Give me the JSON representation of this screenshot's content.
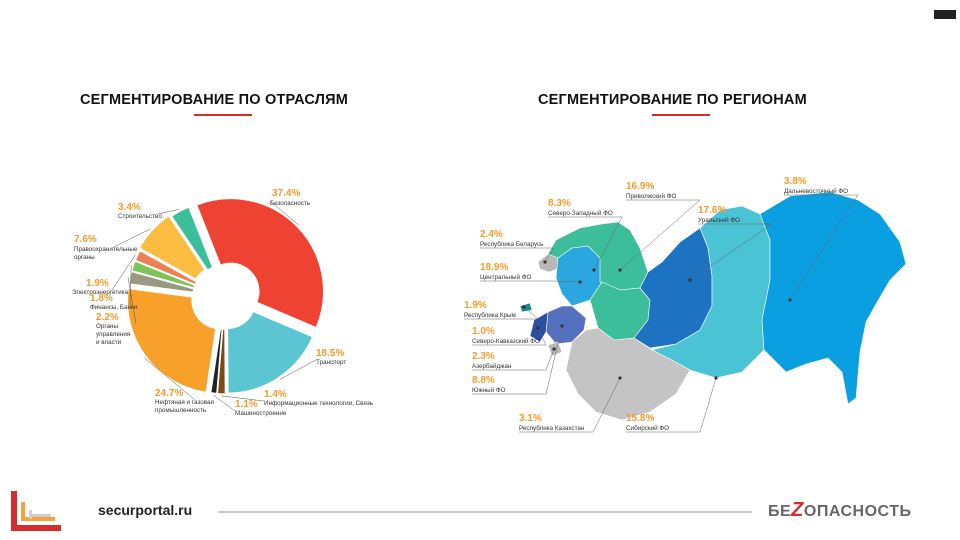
{
  "left_title": "СЕГМЕНТИРОВАНИЕ ПО ОТРАСЛЯМ",
  "right_title": "СЕГМЕНТИРОВАНИЕ ПО РЕГИОНАМ",
  "footer": {
    "url": "securportal.ru",
    "brand_left": "БЕ",
    "brand_z": "Z",
    "brand_right": "ОПАСНОСТЬ"
  },
  "colors": {
    "accent": "#d42d2d",
    "value_orange": "#f29b2b"
  },
  "chart_data": [
    {
      "type": "pie",
      "title": "СЕГМЕНТИРОВАНИЕ ПО ОТРАСЛЯМ",
      "slices": [
        {
          "label": "Безопасность",
          "value": 37.4,
          "value_text": "37.4%",
          "color": "#ee4232"
        },
        {
          "label": "Транспорт",
          "value": 18.5,
          "value_text": "18.5%",
          "color": "#5bc5d1"
        },
        {
          "label": "Информационные технологии, Связь",
          "value": 1.4,
          "value_text": "1.4%",
          "color": "#7a4a18"
        },
        {
          "label": "Машиностроение",
          "value": 1.1,
          "value_text": "1.1%",
          "color": "#222222"
        },
        {
          "label": "Нефтяная и газовая промышленность",
          "value": 24.7,
          "value_text": "24.7%",
          "color": "#f7a12a"
        },
        {
          "label": "Органы управления и власти",
          "value": 2.2,
          "value_text": "2.2%",
          "color": "#9a9a80"
        },
        {
          "label": "Финансы, Банки",
          "value": 1.8,
          "value_text": "1.8%",
          "color": "#7dc456"
        },
        {
          "label": "Электроэнергетика",
          "value": 1.9,
          "value_text": "1.9%",
          "color": "#ee8055"
        },
        {
          "label": "Правоохранительные органы",
          "value": 7.6,
          "value_text": "7.6%",
          "color": "#fbbd41"
        },
        {
          "label": "Строительство",
          "value": 3.4,
          "value_text": "3.4%",
          "color": "#3bbf9a"
        }
      ]
    },
    {
      "type": "map",
      "title": "СЕГМЕНТИРОВАНИЕ ПО РЕГИОНАМ",
      "regions": [
        {
          "label": "Дальневосточный ФО",
          "value": 3.8,
          "value_text": "3.8%",
          "color": "#0a9fe0"
        },
        {
          "label": "Приволжский ФО",
          "value": 16.9,
          "value_text": "16.9%",
          "color": "#3cbe9b"
        },
        {
          "label": "Северо-Западный ФО",
          "value": 8.3,
          "value_text": "8.3%",
          "color": "#3cbe9b"
        },
        {
          "label": "Уральский ФО",
          "value": 17.6,
          "value_text": "17.6%",
          "color": "#1d72c2"
        },
        {
          "label": "Республика Беларусь",
          "value": 2.4,
          "value_text": "2.4%",
          "color": "#b8b8b8"
        },
        {
          "label": "Центральный ФО",
          "value": 18.9,
          "value_text": "18.9%",
          "color": "#2aa7de"
        },
        {
          "label": "Республика Крым",
          "value": 1.9,
          "value_text": "1.9%",
          "color": "#1b8a8a"
        },
        {
          "label": "Северо-Кавказский ФО",
          "value": 1.0,
          "value_text": "1.0%",
          "color": "#2a4fa0"
        },
        {
          "label": "Азербайджан",
          "value": 2.3,
          "value_text": "2.3%",
          "color": "#b8b8b8"
        },
        {
          "label": "Южный ФО",
          "value": 8.8,
          "value_text": "8.8%",
          "color": "#5670c0"
        },
        {
          "label": "Республика Казахстан",
          "value": 3.1,
          "value_text": "3.1%",
          "color": "#c4c4c4"
        },
        {
          "label": "Сибирский ФО",
          "value": 15.8,
          "value_text": "15.8%",
          "color": "#4ac3d4"
        }
      ]
    }
  ]
}
